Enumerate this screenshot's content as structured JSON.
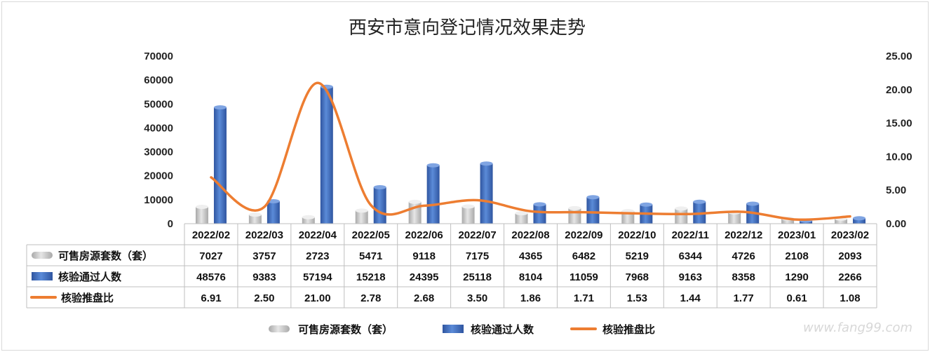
{
  "chart_data": {
    "type": "bar",
    "title": "西安市意向登记情况效果走势",
    "categories": [
      "2022/02",
      "2022/03",
      "2022/04",
      "2022/05",
      "2022/06",
      "2022/07",
      "2022/08",
      "2022/09",
      "2022/10",
      "2022/11",
      "2022/12",
      "2023/01",
      "2023/02"
    ],
    "series": [
      {
        "name": "可售房源套数（套）",
        "kind": "bar",
        "axis": "left",
        "color": "#c8c8c8",
        "values": [
          7027,
          3757,
          2723,
          5471,
          9118,
          7175,
          4365,
          6482,
          5219,
          6344,
          4726,
          2108,
          2093
        ]
      },
      {
        "name": "核验通过人数",
        "kind": "bar",
        "axis": "left",
        "color": "#4472c4",
        "values": [
          48576,
          9383,
          57194,
          15218,
          24395,
          25118,
          8104,
          11059,
          7968,
          9163,
          8358,
          1290,
          2266
        ]
      },
      {
        "name": "核验推盘比",
        "kind": "line",
        "axis": "right",
        "color": "#ed7d31",
        "values": [
          6.91,
          2.5,
          21.0,
          2.78,
          2.68,
          3.5,
          1.86,
          1.71,
          1.53,
          1.44,
          1.77,
          0.61,
          1.08
        ]
      }
    ],
    "series_labels": [
      "6.91",
      "2.50",
      "21.00",
      "2.78",
      "2.68",
      "3.50",
      "1.86",
      "1.71",
      "1.53",
      "1.44",
      "1.77",
      "0.61",
      "1.08"
    ],
    "ylim_left": [
      0,
      70000
    ],
    "yticks_left": [
      "70000",
      "60000",
      "50000",
      "40000",
      "30000",
      "20000",
      "10000",
      "0"
    ],
    "ylim_right": [
      0,
      25
    ],
    "yticks_right": [
      "25.00",
      "20.00",
      "15.00",
      "10.00",
      "5.00",
      "0.00"
    ],
    "grid": false,
    "legend": "bottom",
    "data_table": true
  },
  "watermark": "www.fang99.com"
}
